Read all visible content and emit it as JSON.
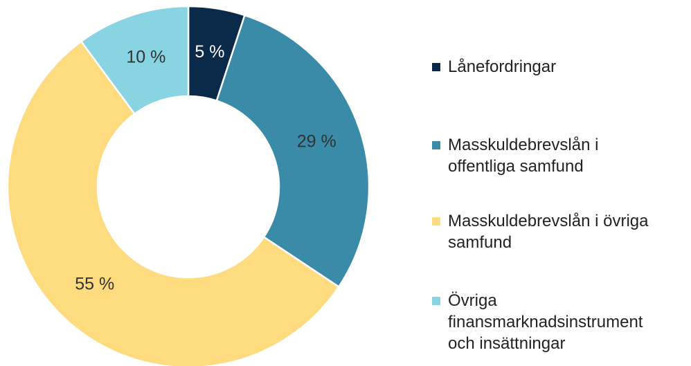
{
  "chart_data": {
    "type": "donut",
    "categories": [
      "Lånefordringar",
      "Masskuldebrevslån i offentliga samfund",
      "Masskuldebrevslån i övriga samfund",
      "Övriga finansmarknadsinstrument och insättningar"
    ],
    "values": [
      5,
      29,
      55,
      10
    ],
    "value_labels": [
      "5 %",
      "29 %",
      "55 %",
      "10 %"
    ],
    "colors": [
      "#0b2a4a",
      "#3a8ba8",
      "#fddb7e",
      "#88d4e2"
    ],
    "legend": "right"
  }
}
